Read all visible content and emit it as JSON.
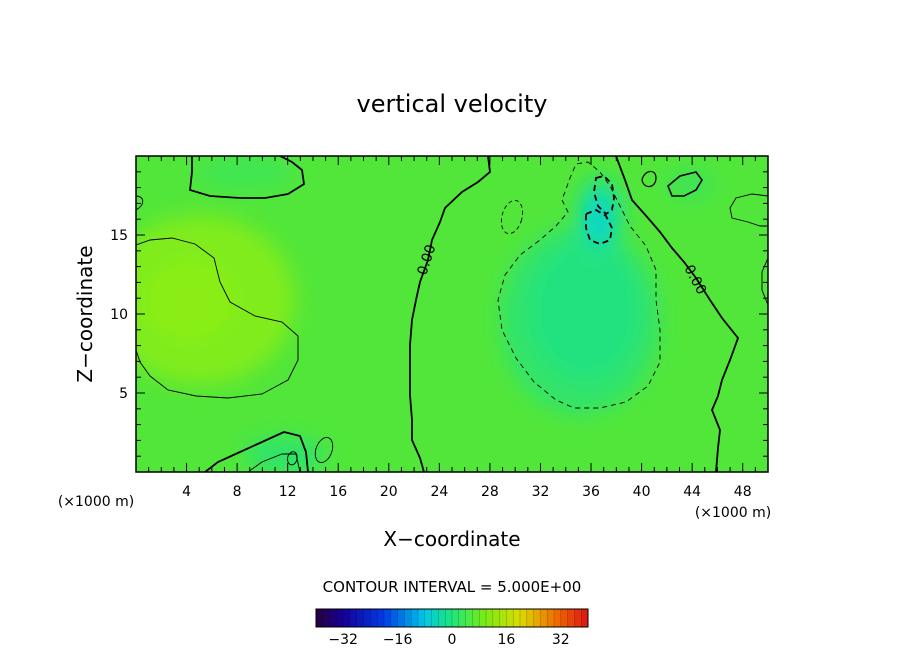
{
  "chart_data": {
    "type": "heatmap",
    "title": "vertical velocity",
    "xlabel": "X−coordinate",
    "ylabel": "Z−coordinate",
    "x_unit_left": "(×1000 m)",
    "x_unit_right": "(×1000 m)",
    "xlim": [
      0,
      50
    ],
    "ylim": [
      0,
      20
    ],
    "x_ticks": [
      4,
      8,
      12,
      16,
      20,
      24,
      28,
      32,
      36,
      40,
      44,
      48
    ],
    "y_ticks": [
      5,
      10,
      15
    ],
    "contour_interval_text": "CONTOUR INTERVAL = 5.000E+00",
    "zero_contour_labels": [
      "0.00",
      "0.00"
    ],
    "colorbar": {
      "range": [
        -40,
        40
      ],
      "ticks": [
        -32,
        -16,
        0,
        16,
        32
      ],
      "tick_labels": [
        "−32",
        "−16",
        "0",
        "16",
        "32"
      ]
    },
    "field_features": [
      {
        "kind": "updraft",
        "x_center": 6,
        "z_center": 10,
        "approx_max": 8
      },
      {
        "kind": "downdraft",
        "x_center": 35,
        "z_center": 10,
        "approx_min": -7
      },
      {
        "kind": "downdraft core",
        "x_center": 36.5,
        "z_center": 16.5,
        "approx_min": -12
      },
      {
        "kind": "downdraft",
        "x_center": 12,
        "z_center": 1,
        "approx_min": -6
      },
      {
        "kind": "downdraft",
        "x_center": 13,
        "z_center": 19,
        "approx_min": -5
      },
      {
        "kind": "downdraft",
        "x_center": 44,
        "z_center": 18,
        "approx_min": -5
      },
      {
        "kind": "updraft",
        "x_center": 48.5,
        "z_center": 17,
        "approx_max": 5
      }
    ]
  }
}
